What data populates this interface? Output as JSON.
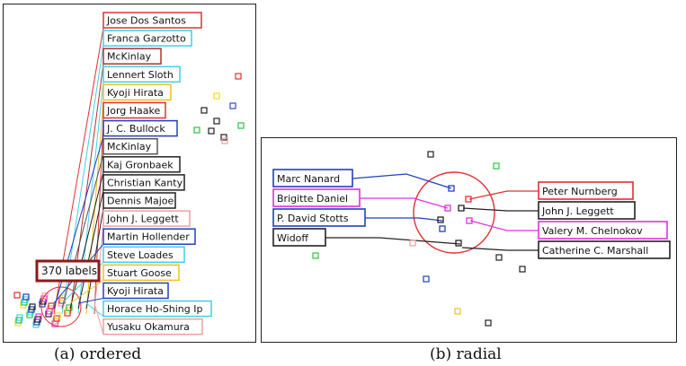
{
  "panels": [
    {
      "caption": "(a)  ordered",
      "badge": "370 labels",
      "labels": [
        {
          "text": "Jose Dos Santos",
          "color": "#e03030"
        },
        {
          "text": "Franca Garzotto",
          "color": "#3fd0e8"
        },
        {
          "text": "McKinlay",
          "color": "#b03030"
        },
        {
          "text": "Lennert Sloth",
          "color": "#3fd0e8"
        },
        {
          "text": "Kyoji Hirata",
          "color": "#f0c020"
        },
        {
          "text": "Jorg Haake",
          "color": "#e03030"
        },
        {
          "text": "J. C. Bullock",
          "color": "#2040c0"
        },
        {
          "text": "McKinlay",
          "color": "#555555"
        },
        {
          "text": "Kaj Gronbaek",
          "color": "#222222"
        },
        {
          "text": "Christian Kanty",
          "color": "#222222"
        },
        {
          "text": "Dennis Majoe",
          "color": "#222222"
        },
        {
          "text": "John J. Leggett",
          "color": "#f0a0a0"
        },
        {
          "text": "Martin Hollender",
          "color": "#2040c0"
        },
        {
          "text": "Steve Loades",
          "color": "#3fd0e8"
        },
        {
          "text": "Stuart Goose",
          "color": "#f0c020"
        },
        {
          "text": "Kyoji Hirata",
          "color": "#2040c0"
        },
        {
          "text": "Horace Ho-Shing Ip",
          "color": "#3fd0e8"
        },
        {
          "text": "Yusaku Okamura",
          "color": "#f0a0a0"
        }
      ],
      "scatter_colors": [
        "#e03030",
        "#f0e020",
        "#3050c0",
        "#222222",
        "#30c040",
        "#f0a0a0"
      ]
    },
    {
      "caption": "(b)  radial",
      "left_labels": [
        {
          "text": "Marc Nanard",
          "color": "#2040c0"
        },
        {
          "text": "Brigitte Daniel",
          "color": "#e030e0"
        },
        {
          "text": "P. David Stotts",
          "color": "#2040c0"
        },
        {
          "text": "Widoff",
          "color": "#222222"
        }
      ],
      "right_labels": [
        {
          "text": "Peter Nurnberg",
          "color": "#e03030"
        },
        {
          "text": "John J. Leggett",
          "color": "#222222"
        },
        {
          "text": "Valery M. Chelnokov",
          "color": "#e030e0"
        },
        {
          "text": "Catherine C. Marshall",
          "color": "#222222"
        }
      ],
      "circle_color": "#e03030"
    }
  ]
}
